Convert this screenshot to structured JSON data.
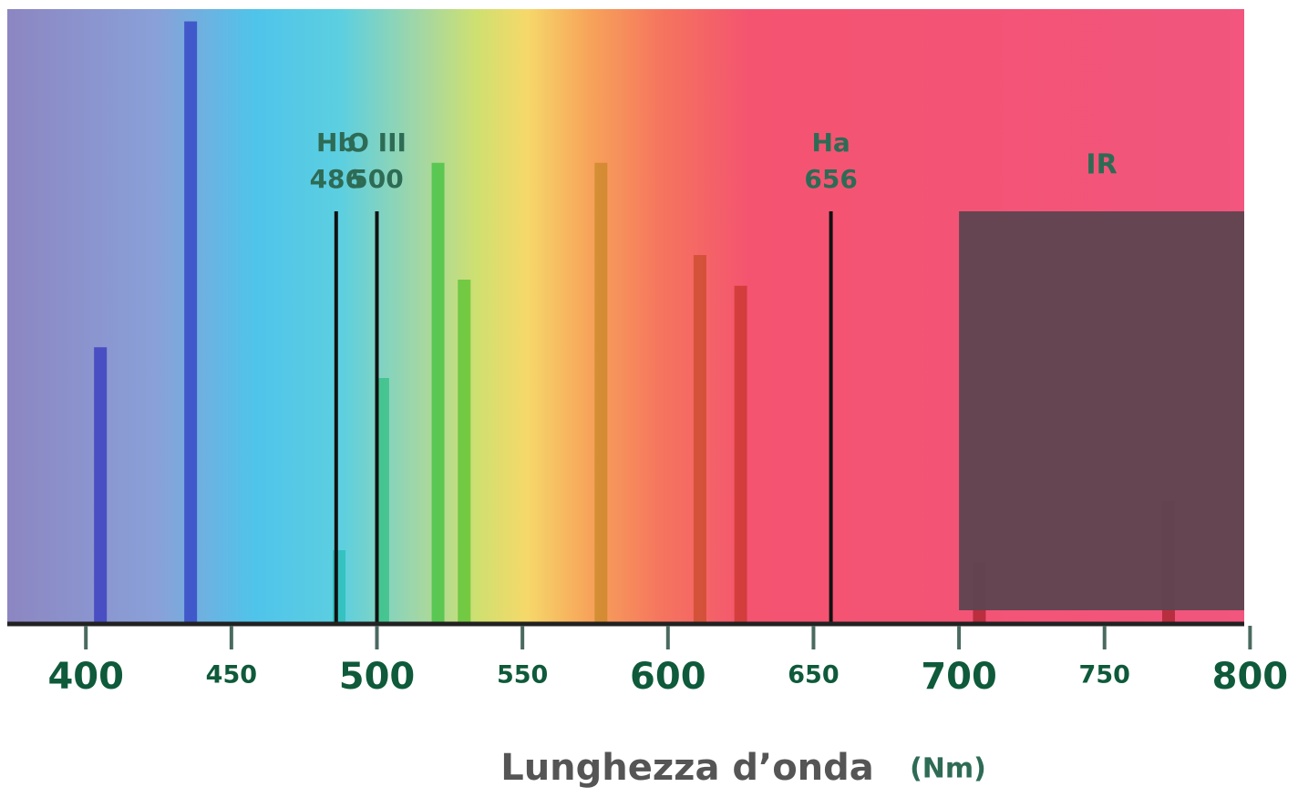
{
  "chart_data": {
    "type": "spectrum",
    "x_label": "Lunghezza d’onda",
    "x_unit": "(Nm)",
    "xlim": [
      373,
      798
    ],
    "xticks": [
      400,
      450,
      500,
      550,
      600,
      650,
      700,
      750,
      800
    ],
    "major_ticks": [
      400,
      500,
      600,
      700,
      800
    ],
    "ylim": [
      0,
      100
    ],
    "x": [
      405,
      436,
      487,
      502,
      521,
      530,
      577,
      611,
      625,
      707,
      772
    ],
    "values": [
      45,
      98,
      12,
      40,
      75,
      56,
      75,
      60,
      55,
      10,
      20
    ],
    "annotations": [
      {
        "label": "Hb",
        "value": 486
      },
      {
        "label": "O III",
        "value": 500
      },
      {
        "label": "Ha",
        "value": 656
      }
    ],
    "ir_region": {
      "label": "IR",
      "start": 700
    }
  }
}
